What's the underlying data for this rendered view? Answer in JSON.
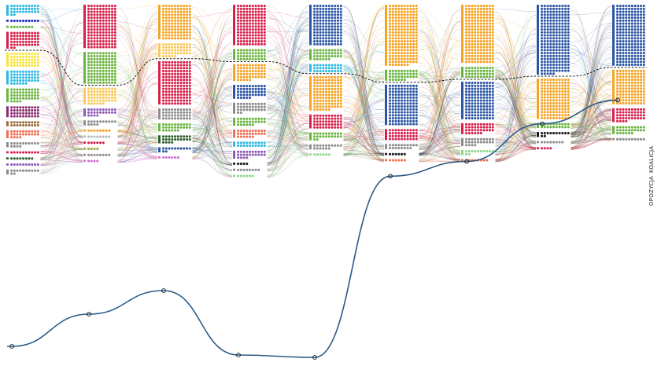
{
  "labels": {
    "opposition": "OPOZYCJA",
    "coalition": "KOALICJA"
  },
  "colors": {
    "blue": "#2b55a4",
    "orange": "#f5a324",
    "red": "#d81e4a",
    "green": "#6ab540",
    "lightorange": "#f9c95a",
    "yellow": "#f6e53a",
    "cyan": "#2cb8e0",
    "darkblue": "#1f2fbf",
    "purple": "#8b2a6e",
    "gray": "#8c8c8c",
    "lightgray": "#b9b9b9",
    "brown": "#9a6d3a",
    "salmon": "#ef6f52",
    "darkgreen": "#2e5e2b",
    "lightgreen": "#8fd88a",
    "violet": "#8e5bb8",
    "pink": "#cf6fd0",
    "black": "#1a1a1a",
    "teal": "#26a0a0",
    "olive": "#9aa53a",
    "lightblue": "#5fb4e8"
  },
  "chart_data": {
    "type": "alluvial",
    "series": [
      {
        "segments": [
          {
            "color": "cyan",
            "dots": 32
          },
          {
            "color": "darkblue",
            "dots": 10
          },
          {
            "color": "green",
            "dots": 8
          },
          {
            "color": "red",
            "dots": 52
          },
          {
            "color": "yellow",
            "dots": 50
          },
          {
            "color": "cyan",
            "dots": 46
          },
          {
            "color": "green",
            "dots": 44
          },
          {
            "color": "purple",
            "dots": 40
          },
          {
            "color": "brown",
            "dots": 20
          },
          {
            "color": "salmon",
            "dots": 24
          },
          {
            "color": "gray",
            "dots": 14
          },
          {
            "color": "red",
            "dots": 10
          },
          {
            "color": "darkgreen",
            "dots": 8
          },
          {
            "color": "violet",
            "dots": 10
          },
          {
            "color": "gray",
            "dots": 12
          }
        ],
        "coalition_boundary_dots": 102
      },
      {
        "segments": [
          {
            "color": "red",
            "dots": 150
          },
          {
            "color": "green",
            "dots": 110
          },
          {
            "color": "lightorange",
            "dots": 56
          },
          {
            "color": "violet",
            "dots": 24
          },
          {
            "color": "gray",
            "dots": 14
          },
          {
            "color": "orange",
            "dots": 8
          },
          {
            "color": "lightgray",
            "dots": 8
          },
          {
            "color": "red",
            "dots": 6
          },
          {
            "color": "olive",
            "dots": 4
          },
          {
            "color": "gray",
            "dots": 8
          },
          {
            "color": "pink",
            "dots": 4
          }
        ],
        "coalition_boundary_dots": 260
      },
      {
        "segments": [
          {
            "color": "orange",
            "dots": 120
          },
          {
            "color": "lightorange",
            "dots": 45
          },
          {
            "color": "red",
            "dots": 150
          },
          {
            "color": "gray",
            "dots": 40
          },
          {
            "color": "green",
            "dots": 26
          },
          {
            "color": "darkgreen",
            "dots": 24
          },
          {
            "color": "blue",
            "dots": 12
          },
          {
            "color": "pink",
            "dots": 6
          }
        ],
        "coalition_boundary_dots": 165
      },
      {
        "segments": [
          {
            "color": "red",
            "dots": 140
          },
          {
            "color": "green",
            "dots": 40
          },
          {
            "color": "orange",
            "dots": 55
          },
          {
            "color": "blue",
            "dots": 45
          },
          {
            "color": "gray",
            "dots": 32
          },
          {
            "color": "green",
            "dots": 26
          },
          {
            "color": "salmon",
            "dots": 26
          },
          {
            "color": "cyan",
            "dots": 20
          },
          {
            "color": "violet",
            "dots": 24
          },
          {
            "color": "black",
            "dots": 4
          },
          {
            "color": "gray",
            "dots": 8
          },
          {
            "color": "lightgreen",
            "dots": 6
          }
        ],
        "coalition_boundary_dots": 180
      },
      {
        "segments": [
          {
            "color": "blue",
            "dots": 140
          },
          {
            "color": "green",
            "dots": 36
          },
          {
            "color": "cyan",
            "dots": 30
          },
          {
            "color": "orange",
            "dots": 116
          },
          {
            "color": "red",
            "dots": 50
          },
          {
            "color": "green",
            "dots": 22
          },
          {
            "color": "gray",
            "dots": 16
          },
          {
            "color": "lightgreen",
            "dots": 6
          }
        ],
        "coalition_boundary_dots": 206
      },
      {
        "segments": [
          {
            "color": "orange",
            "dots": 207
          },
          {
            "color": "green",
            "dots": 36
          },
          {
            "color": "blue",
            "dots": 140
          },
          {
            "color": "red",
            "dots": 40
          },
          {
            "color": "gray",
            "dots": 18
          },
          {
            "color": "black",
            "dots": 6
          },
          {
            "color": "salmon",
            "dots": 6
          }
        ],
        "coalition_boundary_dots": 243
      },
      {
        "segments": [
          {
            "color": "orange",
            "dots": 200
          },
          {
            "color": "green",
            "dots": 40
          },
          {
            "color": "blue",
            "dots": 130
          },
          {
            "color": "red",
            "dots": 36
          },
          {
            "color": "gray",
            "dots": 24
          },
          {
            "color": "lightgreen",
            "dots": 12
          },
          {
            "color": "salmon",
            "dots": 8
          }
        ],
        "coalition_boundary_dots": 240
      },
      {
        "segments": [
          {
            "color": "blue",
            "dots": 235
          },
          {
            "color": "orange",
            "dots": 140
          },
          {
            "color": "green",
            "dots": 20
          },
          {
            "color": "black",
            "dots": 12
          },
          {
            "color": "gray",
            "dots": 8
          },
          {
            "color": "red",
            "dots": 4
          }
        ],
        "coalition_boundary_dots": 235
      },
      {
        "segments": [
          {
            "color": "blue",
            "dots": 210
          },
          {
            "color": "orange",
            "dots": 120
          },
          {
            "color": "red",
            "dots": 44
          },
          {
            "color": "green",
            "dots": 26
          },
          {
            "color": "gray",
            "dots": 10
          }
        ],
        "coalition_boundary_dots": 210
      }
    ],
    "highlight_path_dot_index": [
      428,
      0,
      3,
      0,
      0,
      3,
      0,
      2,
      1
    ]
  }
}
